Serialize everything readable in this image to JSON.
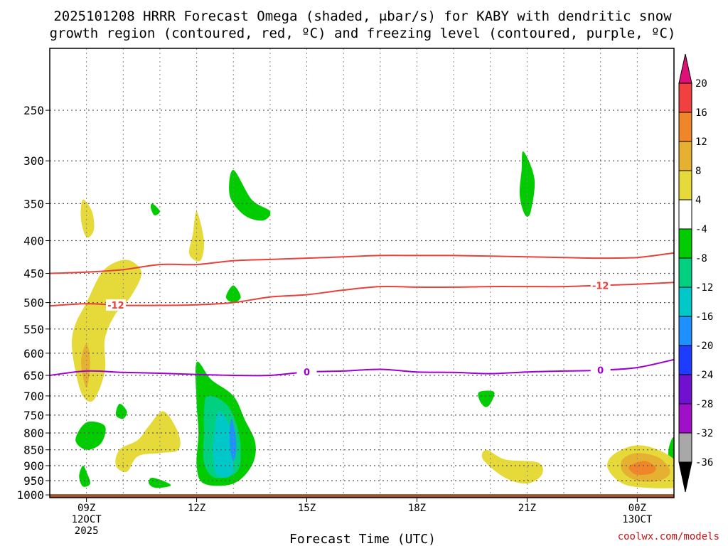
{
  "chart_data": {
    "type": "time-height cross section",
    "title_line1": "2025101208 HRRR Forecast Omega (shaded, μbar/s) for KABY with dendritic snow",
    "title_line2": "growth region (contoured, red, ºC) and freezing level (contoured, purple, ºC)",
    "xlabel": "Forecast Time (UTC)",
    "credit": "coolwx.com/models",
    "x_hours": [
      8,
      9,
      10,
      11,
      12,
      13,
      14,
      15,
      16,
      17,
      18,
      19,
      20,
      21,
      22,
      23,
      24,
      25
    ],
    "xlim": [
      8.0,
      25.0
    ],
    "x_ticks": [
      {
        "hour": 9,
        "labels": [
          "09Z",
          "12OCT",
          "2025"
        ]
      },
      {
        "hour": 12,
        "labels": [
          "12Z"
        ]
      },
      {
        "hour": 15,
        "labels": [
          "15Z"
        ]
      },
      {
        "hour": 18,
        "labels": [
          "18Z"
        ]
      },
      {
        "hour": 21,
        "labels": [
          "21Z"
        ]
      },
      {
        "hour": 24,
        "labels": [
          "00Z",
          "13OCT"
        ]
      }
    ],
    "y_axis": {
      "type": "log-pressure",
      "units": "mb",
      "ylim": [
        1010,
        200
      ],
      "ticks": [
        "250",
        "300",
        "350",
        "400",
        "450",
        "500",
        "550",
        "600",
        "650",
        "700",
        "750",
        "800",
        "850",
        "900",
        "950",
        "1000"
      ]
    },
    "ground": {
      "label": "surface",
      "pressure_mb": 1000,
      "color": "#a0522d"
    },
    "contours": [
      {
        "name": "dgz-top",
        "value": -16,
        "color": "#e8403a",
        "pressure": [
          450,
          448,
          444,
          436,
          436,
          430,
          428,
          426,
          424,
          422,
          422,
          422,
          423,
          424,
          425,
          426,
          425,
          418
        ]
      },
      {
        "name": "dgz-bottom",
        "value": -12,
        "label": "-12",
        "label_hours": [
          9.8,
          23.0
        ],
        "color": "#e8403a",
        "pressure": [
          506,
          502,
          505,
          505,
          504,
          500,
          490,
          486,
          478,
          472,
          473,
          473,
          472,
          472,
          472,
          470,
          468,
          465
        ]
      },
      {
        "name": "freezing-level",
        "value": 0,
        "label": "0",
        "label_hours": [
          15.0,
          23.0
        ],
        "color": "#9d00d0",
        "pressure": [
          650,
          640,
          643,
          645,
          648,
          650,
          650,
          642,
          640,
          636,
          642,
          643,
          646,
          642,
          640,
          638,
          632,
          614
        ]
      }
    ],
    "shaded_regions": [
      {
        "name": "omega-neg-4-a",
        "range": "-8 to -4",
        "color": "#00cc00",
        "points": [
          [
            12.0,
            620
          ],
          [
            12.4,
            660
          ],
          [
            13.0,
            700
          ],
          [
            13.3,
            760
          ],
          [
            13.6,
            830
          ],
          [
            13.5,
            900
          ],
          [
            13.0,
            960
          ],
          [
            12.2,
            960
          ],
          [
            12.0,
            900
          ],
          [
            12.05,
            800
          ],
          [
            12.0,
            720
          ]
        ]
      },
      {
        "name": "omega-neg-8",
        "range": "-12 to -8",
        "color": "#00d080",
        "points": [
          [
            12.3,
            700
          ],
          [
            12.8,
            720
          ],
          [
            13.1,
            780
          ],
          [
            13.2,
            850
          ],
          [
            13.1,
            920
          ],
          [
            12.5,
            940
          ],
          [
            12.2,
            890
          ],
          [
            12.2,
            800
          ],
          [
            12.2,
            740
          ]
        ]
      },
      {
        "name": "omega-neg-12",
        "range": "-16 to -12",
        "color": "#00c8c8",
        "points": [
          [
            12.6,
            740
          ],
          [
            12.9,
            780
          ],
          [
            13.0,
            850
          ],
          [
            12.95,
            930
          ],
          [
            12.55,
            930
          ],
          [
            12.45,
            860
          ],
          [
            12.5,
            790
          ]
        ]
      },
      {
        "name": "omega-neg-16",
        "range": "-20 to -16",
        "color": "#1e90ff",
        "points": [
          [
            12.95,
            760
          ],
          [
            13.05,
            800
          ],
          [
            13.08,
            850
          ],
          [
            13.0,
            885
          ],
          [
            12.92,
            850
          ],
          [
            12.9,
            800
          ]
        ]
      },
      {
        "name": "omega-neg-4-b",
        "range": "-8 to -4",
        "color": "#00cc00",
        "points": [
          [
            13.0,
            310
          ],
          [
            13.5,
            345
          ],
          [
            14.0,
            360
          ],
          [
            13.8,
            372
          ],
          [
            13.3,
            365
          ],
          [
            12.9,
            340
          ]
        ]
      },
      {
        "name": "omega-neg-4-c",
        "range": "-8 to -4",
        "color": "#00cc00",
        "points": [
          [
            20.9,
            290
          ],
          [
            21.2,
            320
          ],
          [
            21.1,
            360
          ],
          [
            20.95,
            365
          ],
          [
            20.8,
            340
          ],
          [
            20.85,
            310
          ]
        ]
      },
      {
        "name": "omega-neg-4-d",
        "range": "-8 to -4",
        "color": "#00cc00",
        "points": [
          [
            10.8,
            350
          ],
          [
            11.0,
            360
          ],
          [
            10.85,
            365
          ],
          [
            10.75,
            355
          ]
        ]
      },
      {
        "name": "omega-neg-4-e",
        "range": "-8 to -4",
        "color": "#00cc00",
        "points": [
          [
            13.0,
            470
          ],
          [
            13.2,
            490
          ],
          [
            13.0,
            500
          ],
          [
            12.8,
            490
          ]
        ]
      },
      {
        "name": "omega-neg-4-f",
        "range": "-8 to -4",
        "color": "#00cc00",
        "points": [
          [
            19.7,
            690
          ],
          [
            20.1,
            690
          ],
          [
            20.0,
            720
          ],
          [
            19.85,
            728
          ],
          [
            19.7,
            710
          ]
        ]
      },
      {
        "name": "omega-neg-4-g",
        "range": "-8 to -4",
        "color": "#00cc00",
        "points": [
          [
            9.0,
            770
          ],
          [
            9.5,
            780
          ],
          [
            9.4,
            830
          ],
          [
            9.0,
            850
          ],
          [
            8.7,
            820
          ]
        ]
      },
      {
        "name": "omega-neg-4-h",
        "range": "-8 to -4",
        "color": "#00cc00",
        "points": [
          [
            8.9,
            900
          ],
          [
            9.0,
            920
          ],
          [
            9.1,
            960
          ],
          [
            8.9,
            970
          ],
          [
            8.8,
            935
          ]
        ]
      },
      {
        "name": "omega-neg-4-i",
        "range": "-8 to -4",
        "color": "#00cc00",
        "points": [
          [
            9.9,
            720
          ],
          [
            10.1,
            740
          ],
          [
            10.0,
            760
          ],
          [
            9.8,
            750
          ]
        ]
      },
      {
        "name": "omega-neg-4-j",
        "range": "-8 to -4",
        "color": "#00cc00",
        "points": [
          [
            10.8,
            940
          ],
          [
            11.3,
            965
          ],
          [
            10.9,
            975
          ],
          [
            10.7,
            960
          ]
        ]
      },
      {
        "name": "omega-neg-4-k",
        "range": "-8 to -4",
        "color": "#00cc00",
        "points": [
          [
            25.0,
            815
          ],
          [
            24.85,
            850
          ],
          [
            24.9,
            910
          ],
          [
            25.0,
            925
          ]
        ]
      },
      {
        "name": "omega-pos-4-a",
        "range": "4 to 8",
        "color": "#e6d93a",
        "points": [
          [
            8.9,
            345
          ],
          [
            9.15,
            360
          ],
          [
            9.2,
            385
          ],
          [
            9.0,
            395
          ],
          [
            8.85,
            370
          ]
        ]
      },
      {
        "name": "omega-pos-4-b",
        "range": "4 to 8",
        "color": "#e6d93a",
        "points": [
          [
            12.0,
            360
          ],
          [
            12.2,
            400
          ],
          [
            12.1,
            430
          ],
          [
            11.8,
            420
          ],
          [
            11.9,
            390
          ]
        ]
      },
      {
        "name": "omega-pos-4-c",
        "range": "4 to 8",
        "color": "#e6d93a",
        "points": [
          [
            10.2,
            430
          ],
          [
            10.5,
            450
          ],
          [
            10.2,
            490
          ],
          [
            9.8,
            520
          ],
          [
            9.5,
            570
          ],
          [
            9.5,
            640
          ],
          [
            9.2,
            710
          ],
          [
            8.9,
            700
          ],
          [
            8.7,
            640
          ],
          [
            8.6,
            580
          ],
          [
            8.7,
            540
          ],
          [
            9.0,
            500
          ],
          [
            9.4,
            450
          ],
          [
            9.8,
            432
          ]
        ]
      },
      {
        "name": "omega-pos-8-a",
        "range": "8 to 12",
        "color": "#e6b030",
        "points": [
          [
            9.0,
            580
          ],
          [
            9.1,
            620
          ],
          [
            9.0,
            680
          ],
          [
            8.85,
            620
          ]
        ]
      },
      {
        "name": "omega-pos-4-d",
        "range": "4 to 8",
        "color": "#e6d93a",
        "points": [
          [
            11.1,
            740
          ],
          [
            11.5,
            800
          ],
          [
            11.5,
            850
          ],
          [
            11.0,
            860
          ],
          [
            10.4,
            870
          ],
          [
            10.1,
            920
          ],
          [
            9.8,
            900
          ],
          [
            9.9,
            850
          ],
          [
            10.4,
            820
          ],
          [
            10.7,
            780
          ]
        ]
      },
      {
        "name": "omega-pos-4-e",
        "range": "4 to 8",
        "color": "#e6d93a",
        "points": [
          [
            19.9,
            850
          ],
          [
            20.4,
            880
          ],
          [
            21.3,
            890
          ],
          [
            21.4,
            930
          ],
          [
            21.0,
            960
          ],
          [
            20.4,
            940
          ],
          [
            19.8,
            880
          ]
        ]
      },
      {
        "name": "omega-pos-4-f",
        "range": "4 to 8",
        "color": "#e6d93a",
        "points": [
          [
            23.3,
            870
          ],
          [
            23.8,
            840
          ],
          [
            24.3,
            840
          ],
          [
            24.9,
            870
          ],
          [
            25.3,
            920
          ],
          [
            25.2,
            970
          ],
          [
            24.3,
            975
          ],
          [
            23.6,
            960
          ],
          [
            23.2,
            910
          ]
        ]
      },
      {
        "name": "omega-pos-8-b",
        "range": "8 to 12",
        "color": "#e6b030",
        "points": [
          [
            23.6,
            880
          ],
          [
            24.0,
            860
          ],
          [
            24.6,
            875
          ],
          [
            24.9,
            920
          ],
          [
            24.6,
            950
          ],
          [
            24.0,
            950
          ],
          [
            23.6,
            920
          ]
        ]
      },
      {
        "name": "omega-pos-12",
        "range": "12 to 16",
        "color": "#f0852a",
        "points": [
          [
            23.8,
            900
          ],
          [
            24.2,
            885
          ],
          [
            24.5,
            905
          ],
          [
            24.4,
            925
          ],
          [
            24.0,
            930
          ],
          [
            23.8,
            915
          ]
        ]
      }
    ],
    "colorbar": {
      "units": "μbar/s",
      "tick_labels": [
        "20",
        "16",
        "12",
        "8",
        "4",
        "-4",
        "-8",
        "-12",
        "-16",
        "-20",
        "-24",
        "-28",
        "-32",
        "-36"
      ],
      "bands": [
        {
          "range": "20+",
          "color": "#e0107a"
        },
        {
          "range": "16 to 20",
          "color": "#f04040"
        },
        {
          "range": "12 to 16",
          "color": "#f0852a"
        },
        {
          "range": "8 to 12",
          "color": "#e6b030"
        },
        {
          "range": "4 to 8",
          "color": "#e6d93a"
        },
        {
          "range": "-4 to 4",
          "color": "#ffffff"
        },
        {
          "range": "-8 to -4",
          "color": "#00cc00"
        },
        {
          "range": "-12 to -8",
          "color": "#00d080"
        },
        {
          "range": "-16 to -12",
          "color": "#00c8c8"
        },
        {
          "range": "-20 to -16",
          "color": "#1e90ff"
        },
        {
          "range": "-24 to -20",
          "color": "#1e3cff"
        },
        {
          "range": "-28 to -24",
          "color": "#7010d0"
        },
        {
          "range": "-32 to -28",
          "color": "#a010c8"
        },
        {
          "range": "-36 to -32",
          "color": "#a8a8a8"
        },
        {
          "range": "below -36",
          "color": "#000000"
        }
      ]
    }
  }
}
